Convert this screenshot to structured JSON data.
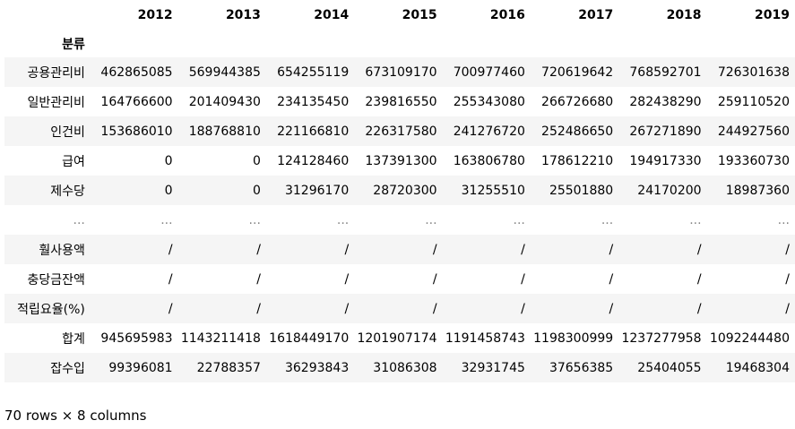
{
  "table": {
    "columns": [
      "2012",
      "2013",
      "2014",
      "2015",
      "2016",
      "2017",
      "2018",
      "2019"
    ],
    "index_name": "분류",
    "rows": [
      {
        "label": "공용관리비",
        "values": [
          "462865085",
          "569944385",
          "654255119",
          "673109170",
          "700977460",
          "720619642",
          "768592701",
          "726301638"
        ]
      },
      {
        "label": "일반관리비",
        "values": [
          "164766600",
          "201409430",
          "234135450",
          "239816550",
          "255343080",
          "266726680",
          "282438290",
          "259110520"
        ]
      },
      {
        "label": "인건비",
        "values": [
          "153686010",
          "188768810",
          "221166810",
          "226317580",
          "241276720",
          "252486650",
          "267271890",
          "244927560"
        ]
      },
      {
        "label": "급여",
        "values": [
          "0",
          "0",
          "124128460",
          "137391300",
          "163806780",
          "178612210",
          "194917330",
          "193360730"
        ]
      },
      {
        "label": "제수당",
        "values": [
          "0",
          "0",
          "31296170",
          "28720300",
          "31255510",
          "25501880",
          "24170200",
          "18987360"
        ]
      },
      {
        "label": "...",
        "values": [
          "...",
          "...",
          "...",
          "...",
          "...",
          "...",
          "...",
          "..."
        ]
      },
      {
        "label": "훨사용액",
        "values": [
          "/",
          "/",
          "/",
          "/",
          "/",
          "/",
          "/",
          "/"
        ]
      },
      {
        "label": "충당금잔액",
        "values": [
          "/",
          "/",
          "/",
          "/",
          "/",
          "/",
          "/",
          "/"
        ]
      },
      {
        "label": "적립요율(%)",
        "values": [
          "/",
          "/",
          "/",
          "/",
          "/",
          "/",
          "/",
          "/"
        ]
      },
      {
        "label": "합계",
        "values": [
          "945695983",
          "1143211418",
          "1618449170",
          "1201907174",
          "1191458743",
          "1198300999",
          "1237277958",
          "1092244480"
        ]
      },
      {
        "label": "잡수입",
        "values": [
          "99396081",
          "22788357",
          "36293843",
          "31086308",
          "32931745",
          "37656385",
          "25404055",
          "19468304"
        ]
      }
    ]
  },
  "footer": {
    "shape_text": "70 rows × 8 columns"
  }
}
